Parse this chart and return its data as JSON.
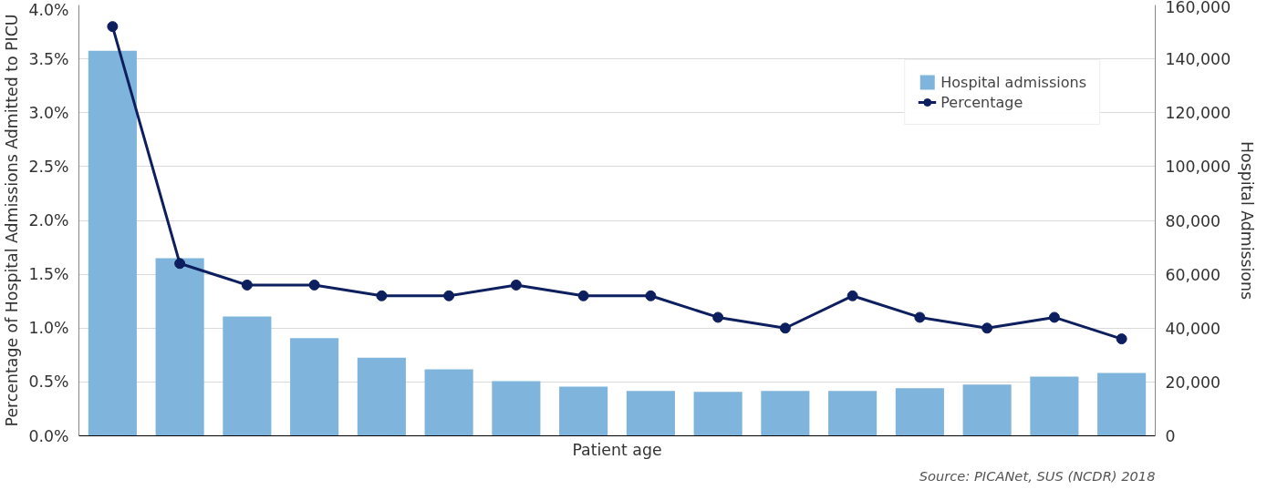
{
  "chart_data": {
    "type": "bar",
    "xlabel": "Patient age",
    "ylabel": "Percentage of Hospital Admissions Admitted to PICU",
    "y2label": "Hospital Admissions",
    "categories": [
      null,
      null,
      null,
      null,
      null,
      null,
      null,
      null,
      null,
      null,
      null,
      null,
      null,
      null,
      null,
      null
    ],
    "series": [
      {
        "name": "Hospital admissions",
        "axis": "y2",
        "color": "#7fb5dc",
        "values": [
          143000,
          66000,
          44300,
          36300,
          29000,
          24700,
          20300,
          18300,
          16700,
          16300,
          16700,
          16700,
          17700,
          19000,
          22000,
          23300
        ]
      },
      {
        "name": "Percentage",
        "type": "line",
        "axis": "y",
        "color": "#0e1f5f",
        "marker": "circle",
        "values": [
          3.8,
          1.6,
          1.4,
          1.4,
          1.3,
          1.3,
          1.4,
          1.3,
          1.3,
          1.1,
          1.0,
          1.3,
          1.1,
          1.0,
          1.1,
          0.9
        ]
      }
    ],
    "ylim": [
      0,
      4
    ],
    "yticks": [
      {
        "value": 0,
        "label": "0.0%"
      },
      {
        "value": 0.5,
        "label": "0.5%"
      },
      {
        "value": 1,
        "label": "1.0%"
      },
      {
        "value": 1.5,
        "label": "1.5%"
      },
      {
        "value": 2,
        "label": "2.0%"
      },
      {
        "value": 2.5,
        "label": "2.5%"
      },
      {
        "value": 3,
        "label": "3.0%"
      },
      {
        "value": 3.5,
        "label": "3.5%"
      },
      {
        "value": 4,
        "label": "4.0%"
      }
    ],
    "y2lim": [
      0,
      160000
    ],
    "y2ticks": [
      {
        "value": 0,
        "label": "0"
      },
      {
        "value": 20000,
        "label": "20,000"
      },
      {
        "value": 40000,
        "label": "40,000"
      },
      {
        "value": 60000,
        "label": "60,000"
      },
      {
        "value": 80000,
        "label": "80,000"
      },
      {
        "value": 100000,
        "label": "100,000"
      },
      {
        "value": 120000,
        "label": "120,000"
      },
      {
        "value": 140000,
        "label": "140,000"
      },
      {
        "value": 160000,
        "label": "160,000"
      }
    ],
    "grid": "y",
    "legend": "top right",
    "annotations": [
      "Source: PICANet, SUS (NCDR) 2018"
    ]
  }
}
